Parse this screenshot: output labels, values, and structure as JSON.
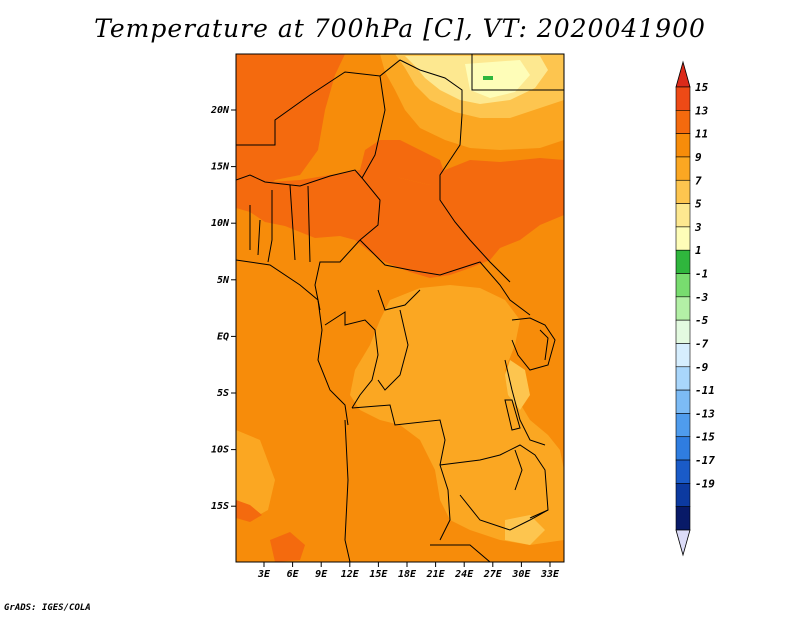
{
  "title": "Temperature at 700hPa [C], VT: 2020041900",
  "credit": "GrADS: IGES/COLA",
  "map": {
    "lon_ticks": [
      "3E",
      "6E",
      "9E",
      "12E",
      "15E",
      "18E",
      "21E",
      "24E",
      "27E",
      "30E",
      "33E"
    ],
    "lat_ticks": [
      "20N",
      "15N",
      "10N",
      "5N",
      "EQ",
      "5S",
      "10S",
      "15S"
    ]
  },
  "colorbar": {
    "labels": [
      "15",
      "13",
      "11",
      "9",
      "7",
      "5",
      "3",
      "1",
      "-1",
      "-3",
      "-5",
      "-7",
      "-9",
      "-11",
      "-13",
      "-15",
      "-17",
      "-19"
    ],
    "colors": {
      "top_arrow": "#dc2a1a",
      "bands": [
        "#ee4a16",
        "#f46a0e",
        "#f78c0a",
        "#fba722",
        "#fdc54f",
        "#fde890",
        "#fefdb8",
        "#2fb63d",
        "#78dc6f",
        "#b3f0a6",
        "#e3fae0",
        "#d6eefe",
        "#a9d6fb",
        "#7cbbf5",
        "#4f9ced",
        "#2f7de0",
        "#1a5bc8",
        "#0c3aa0",
        "#081a68"
      ],
      "bottom_arrow": "#dcdcf8"
    }
  },
  "field_colors": {
    "c11": "#f46a0e",
    "c9": "#f78c0a",
    "c7": "#fba722",
    "c5": "#fdc54f",
    "c3": "#fde890",
    "c1": "#fefdb8",
    "green": "#2fb63d"
  }
}
